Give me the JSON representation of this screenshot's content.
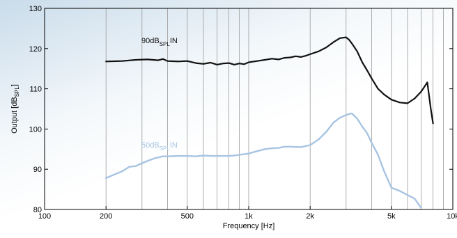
{
  "chart_data": {
    "type": "line",
    "xlabel": "Frequency [Hz]",
    "ylabel": "Output [dB",
    "ylabel_sub": "SPL",
    "ylabel_end": "]",
    "x_scale": "log",
    "xlim": [
      100,
      10000
    ],
    "ylim": [
      80,
      130
    ],
    "grid": "vertical",
    "x_ticks": [
      100,
      200,
      500,
      1000,
      2000,
      5000,
      10000
    ],
    "x_tick_labels": [
      "100",
      "200",
      "500",
      "1k",
      "2k",
      "5k",
      "10k"
    ],
    "y_ticks": [
      80,
      90,
      100,
      110,
      120,
      130
    ],
    "y_tick_labels": [
      "80",
      "90",
      "100",
      "110",
      "120",
      "130"
    ],
    "series": [
      {
        "name": "90dBSPLIN",
        "label_main": "90dB",
        "label_sub": "SPL",
        "label_end": "IN",
        "color": "#111111",
        "x": [
          200,
          240,
          280,
          320,
          360,
          380,
          400,
          450,
          500,
          550,
          600,
          650,
          700,
          750,
          800,
          850,
          900,
          950,
          1000,
          1100,
          1200,
          1300,
          1400,
          1500,
          1600,
          1700,
          1800,
          1900,
          2000,
          2200,
          2400,
          2600,
          2800,
          3000,
          3100,
          3200,
          3400,
          3600,
          3800,
          4000,
          4300,
          4600,
          5000,
          5500,
          6000,
          6500,
          7000,
          7500,
          7800,
          8000
        ],
        "y": [
          116.8,
          116.9,
          117.2,
          117.3,
          117.1,
          117.4,
          116.9,
          116.8,
          116.9,
          116.4,
          116.2,
          116.5,
          116.0,
          116.3,
          116.4,
          116.0,
          116.3,
          116.1,
          116.6,
          116.9,
          117.2,
          117.5,
          117.3,
          117.7,
          117.8,
          118.1,
          117.9,
          118.2,
          118.6,
          119.3,
          120.3,
          121.6,
          122.6,
          122.8,
          122.2,
          121.3,
          119.3,
          116.6,
          114.6,
          112.6,
          110.0,
          108.6,
          107.3,
          106.6,
          106.4,
          107.6,
          109.3,
          111.6,
          105.0,
          101.4
        ]
      },
      {
        "name": "50dBSPLIN",
        "label_main": "50dB",
        "label_sub": "SPL",
        "label_end": "IN",
        "color": "#a7c4e3",
        "x": [
          200,
          220,
          240,
          260,
          280,
          300,
          320,
          350,
          380,
          400,
          450,
          500,
          550,
          600,
          650,
          700,
          750,
          800,
          850,
          900,
          1000,
          1100,
          1200,
          1300,
          1400,
          1500,
          1600,
          1800,
          2000,
          2200,
          2400,
          2600,
          2800,
          3000,
          3200,
          3400,
          3600,
          3800,
          4000,
          4300,
          4600,
          5000,
          5500,
          6000,
          6500,
          7000
        ],
        "y": [
          87.8,
          88.7,
          89.5,
          90.6,
          90.8,
          91.5,
          92.1,
          92.8,
          93.2,
          93.2,
          93.3,
          93.3,
          93.2,
          93.4,
          93.3,
          93.3,
          93.3,
          93.3,
          93.4,
          93.6,
          93.9,
          94.5,
          95.0,
          95.2,
          95.3,
          95.6,
          95.6,
          95.5,
          96.0,
          97.4,
          99.3,
          101.6,
          102.8,
          103.5,
          103.9,
          102.6,
          100.6,
          99.0,
          96.6,
          93.6,
          89.6,
          85.4,
          84.6,
          83.6,
          82.7,
          80.4
        ]
      }
    ]
  }
}
